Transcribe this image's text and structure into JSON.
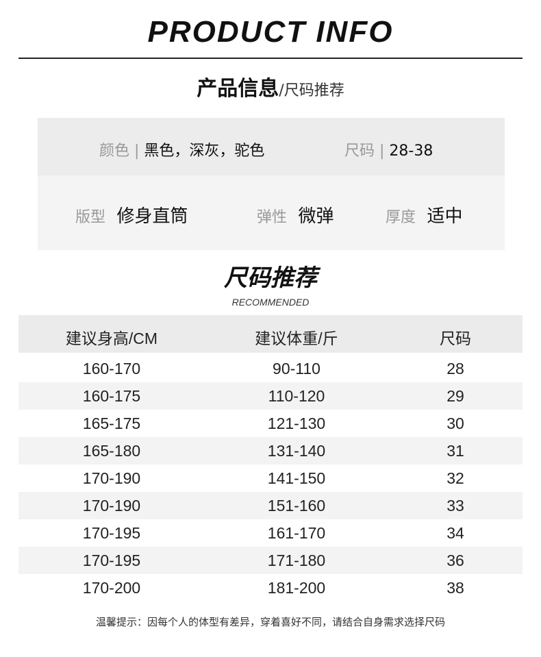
{
  "header": {
    "title": "PRODUCT INFO",
    "subtitle_main": "产品信息",
    "subtitle_rest": "/尺码推荐"
  },
  "info": {
    "color_label": "颜色",
    "color_value": "黑色，深灰，驼色",
    "size_label": "尺码",
    "size_value": "28-38",
    "fit_label": "版型",
    "fit_value": "修身直筒",
    "elastic_label": "弹性",
    "elastic_value": "微弹",
    "thickness_label": "厚度",
    "thickness_value": "适中"
  },
  "recommend": {
    "title": "尺码推荐",
    "subtitle": "RECOMMENDED"
  },
  "table": {
    "headers": [
      "建议身高/CM",
      "建议体重/斤",
      "尺码"
    ],
    "rows": [
      [
        "160-170",
        "90-110",
        "28"
      ],
      [
        "160-175",
        "110-120",
        "29"
      ],
      [
        "165-175",
        "121-130",
        "30"
      ],
      [
        "165-180",
        "131-140",
        "31"
      ],
      [
        "170-190",
        "141-150",
        "32"
      ],
      [
        "170-190",
        "151-160",
        "33"
      ],
      [
        "170-195",
        "161-170",
        "34"
      ],
      [
        "170-195",
        "171-180",
        "36"
      ],
      [
        "170-200",
        "181-200",
        "38"
      ]
    ]
  },
  "note": "温馨提示：因每个人的体型有差异，穿着喜好不同，请结合自身需求选择尺码"
}
